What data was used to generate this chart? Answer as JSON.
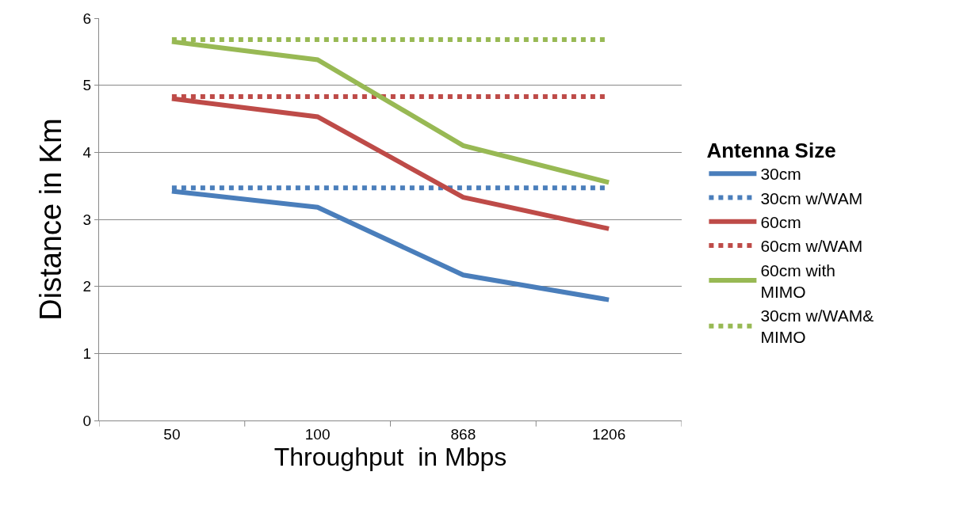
{
  "chart_data": {
    "type": "line",
    "xlabel": "Throughput  in Mbps",
    "ylabel": "Distance in Km",
    "legend_title": "Antenna Size",
    "categories": [
      "50",
      "100",
      "868",
      "1206"
    ],
    "series": [
      {
        "name": "30cm",
        "color": "#4a7ebb",
        "line_style": "solid",
        "values": [
          3.42,
          3.18,
          2.17,
          1.8
        ]
      },
      {
        "name": "30cm w/WAM",
        "color": "#4a7ebb",
        "line_style": "dotted",
        "values": [
          3.47,
          3.47,
          3.47,
          3.47
        ]
      },
      {
        "name": "60cm",
        "color": "#be4b48",
        "line_style": "solid",
        "values": [
          4.8,
          4.53,
          3.33,
          2.86
        ]
      },
      {
        "name": "60cm w/WAM",
        "color": "#be4b48",
        "line_style": "dotted",
        "values": [
          4.83,
          4.83,
          4.83,
          4.83
        ]
      },
      {
        "name": "60cm with MIMO",
        "color": "#98b954",
        "line_style": "solid",
        "values": [
          5.65,
          5.38,
          4.1,
          3.55
        ]
      },
      {
        "name": "30cm w/WAM& MIMO",
        "color": "#98b954",
        "line_style": "dotted",
        "values": [
          5.68,
          5.68,
          5.68,
          5.68
        ]
      }
    ],
    "ylim": [
      0,
      6
    ],
    "yticks": [
      0,
      1,
      2,
      3,
      4,
      5,
      6
    ],
    "grid": "y",
    "legend": "right",
    "marker": "none"
  }
}
